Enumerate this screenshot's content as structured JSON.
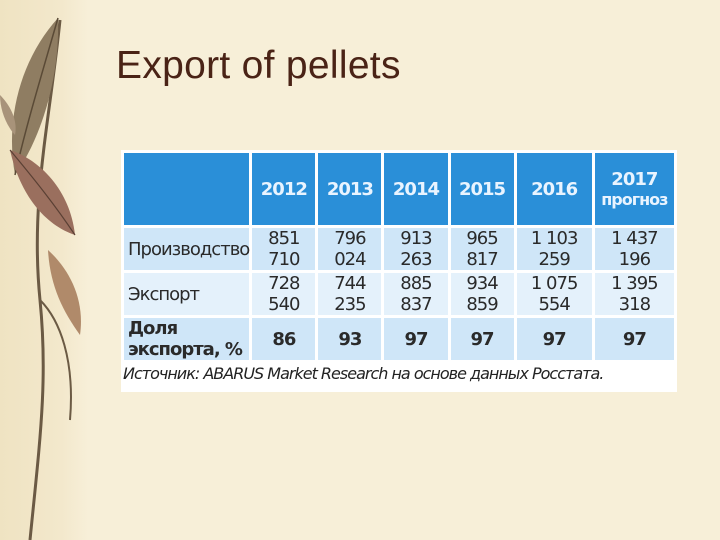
{
  "slide": {
    "title": "Export of pellets"
  },
  "table": {
    "headers": [
      "2012",
      "2013",
      "2014",
      "2015",
      "2016",
      "2017"
    ],
    "header_note_2017": "прогноз",
    "rows": [
      {
        "label": "Производство",
        "values": [
          "851 710",
          "796 024",
          "913 263",
          "965 817",
          "1 103 259",
          "1 437 196"
        ]
      },
      {
        "label": "Экспорт",
        "values": [
          "728 540",
          "744 235",
          "885 837",
          "934 859",
          "1 075 554",
          "1 395 318"
        ]
      },
      {
        "label": "Доля экспорта, %",
        "values": [
          "86",
          "93",
          "97",
          "97",
          "97",
          "97"
        ]
      }
    ],
    "source": "Источник: ABARUS Market Research на основе данных Росстата."
  },
  "colors": {
    "header_blue": "#2a8fd8",
    "row_light": "#cfe6f8",
    "row_lighter": "#e4f1fb",
    "title_brown": "#4a2316",
    "background": "#f7efd8"
  }
}
